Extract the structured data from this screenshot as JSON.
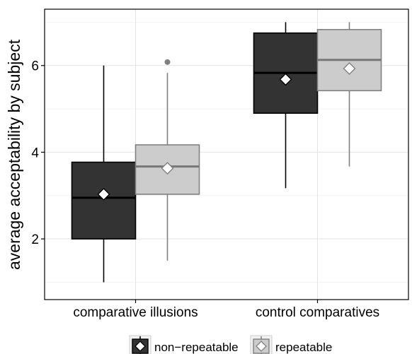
{
  "chart_data": {
    "type": "box",
    "categories": [
      "comparative illusions",
      "control comparatives"
    ],
    "ylabel": "average acceptability by subject",
    "xlabel": "",
    "ylim": [
      0.6,
      7.3
    ],
    "yticks": [
      2,
      4,
      6
    ],
    "grid": true,
    "legend_position": "bottom",
    "series": [
      {
        "name": "non−repeatable",
        "fill": "#333333",
        "stroke": "#000000",
        "boxes": [
          {
            "min": 1.0,
            "q1": 2.0,
            "median": 2.95,
            "q3": 3.77,
            "max": 6.0,
            "mean": 3.03,
            "outliers": []
          },
          {
            "min": 3.17,
            "q1": 4.9,
            "median": 5.83,
            "q3": 6.75,
            "max": 7.0,
            "mean": 5.68,
            "outliers": []
          }
        ]
      },
      {
        "name": "repeatable",
        "fill": "#cccccc",
        "stroke": "#808080",
        "boxes": [
          {
            "min": 1.5,
            "q1": 3.03,
            "median": 3.67,
            "q3": 4.17,
            "max": 5.83,
            "mean": 3.63,
            "outliers": [
              6.08
            ]
          },
          {
            "min": 3.67,
            "q1": 5.42,
            "median": 6.13,
            "q3": 6.83,
            "max": 7.0,
            "mean": 5.93,
            "outliers": []
          }
        ]
      }
    ]
  }
}
